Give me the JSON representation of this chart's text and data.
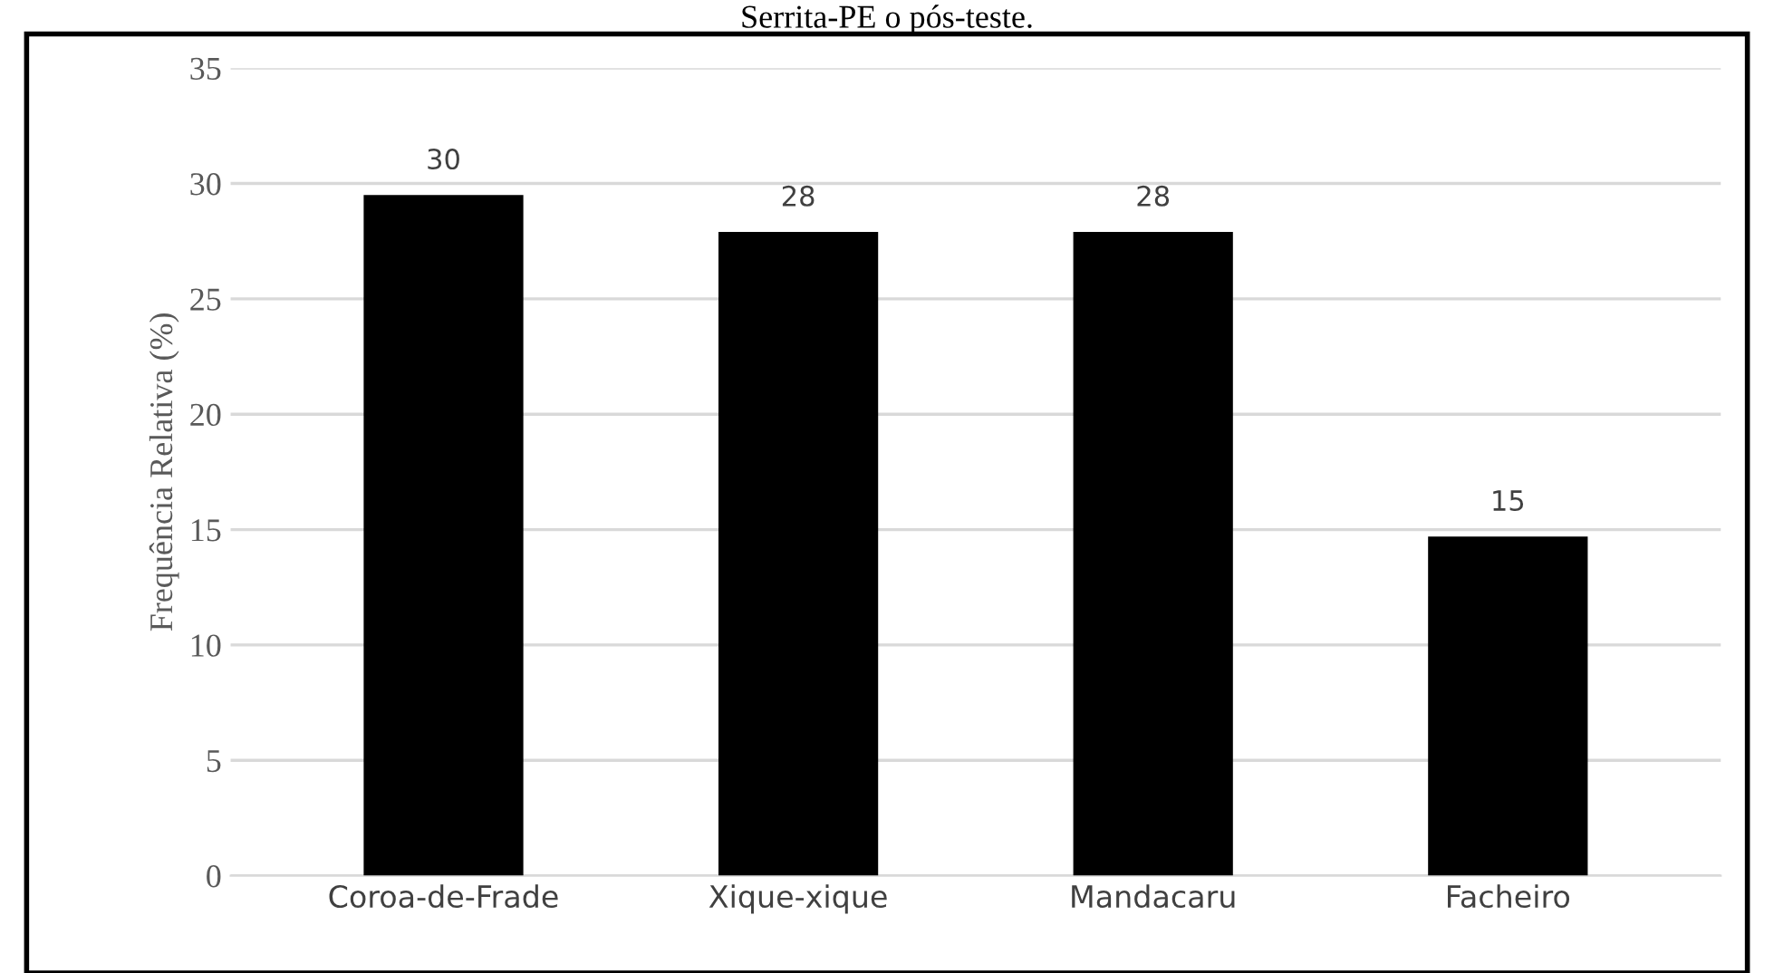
{
  "chart_data": {
    "type": "bar",
    "title": "Serrita-PE o pós-teste.",
    "ylabel": "Frequência Relativa (%)",
    "categories": [
      "Coroa-de-Frade",
      "Xique-xique",
      "Mandacaru",
      "Facheiro"
    ],
    "values": [
      29.5,
      27.9,
      27.9,
      14.7
    ],
    "value_labels": [
      "30",
      "28",
      "28",
      "15"
    ],
    "color": "#000000",
    "ylim": [
      0,
      35
    ],
    "yticks": [
      0,
      5,
      10,
      15,
      20,
      25,
      30,
      35
    ],
    "grid": "y"
  }
}
